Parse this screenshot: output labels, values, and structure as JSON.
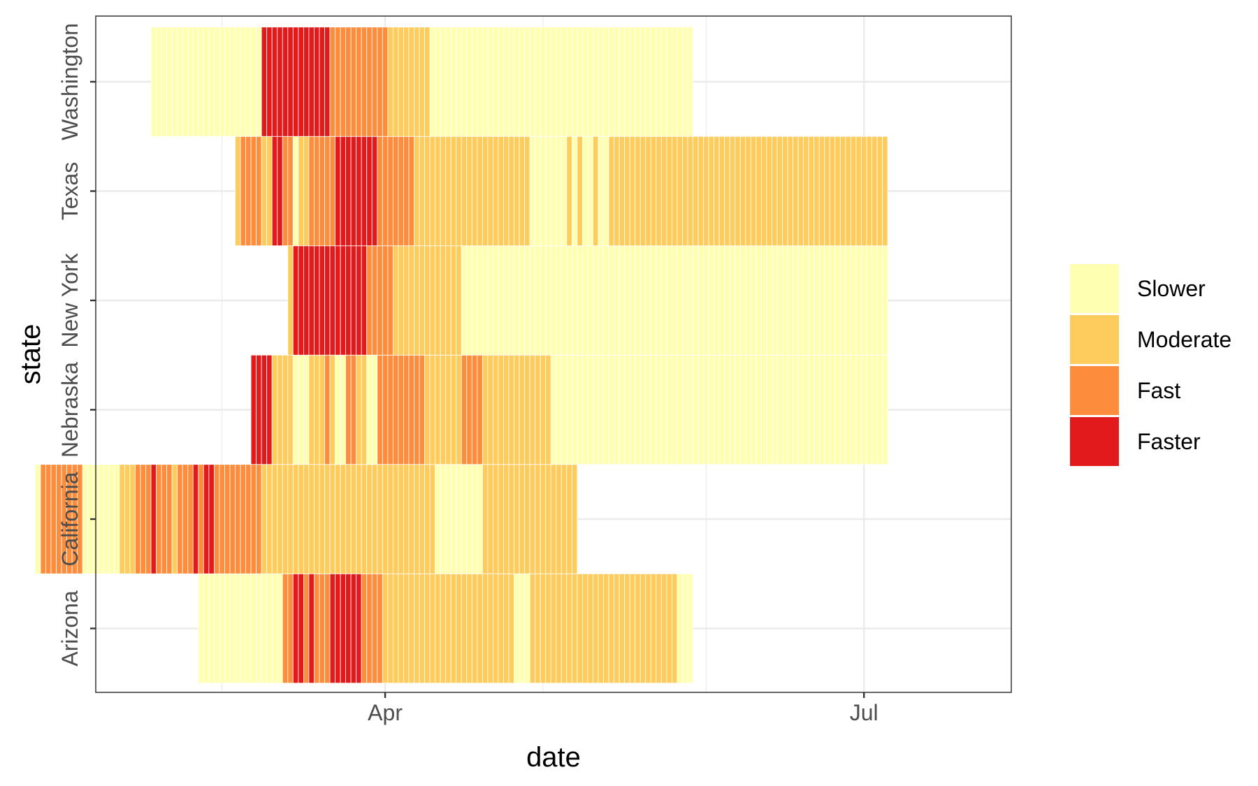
{
  "chart_data": {
    "type": "heatmap",
    "title": "",
    "xlabel": "date",
    "ylabel": "state",
    "x_ticks": [
      "Apr",
      "Jul"
    ],
    "x_range": [
      "2020-02-06",
      "2020-07-29"
    ],
    "grid": true,
    "legend_position": "right",
    "categories": [
      "Arizona",
      "California",
      "Nebraska",
      "New York",
      "Texas",
      "Washington"
    ],
    "levels": [
      "Slower",
      "Moderate",
      "Fast",
      "Faster"
    ],
    "colors": {
      "Slower": "#ffffb2",
      "Moderate": "#fecc5c",
      "Fast": "#fd8d3c",
      "Faster": "#e31a1c"
    },
    "series": [
      {
        "name": "Arizona",
        "segments": [
          {
            "start": "2020-02-26",
            "end": "2020-03-12",
            "level": "Slower"
          },
          {
            "start": "2020-03-13",
            "end": "2020-03-14",
            "level": "Fast"
          },
          {
            "start": "2020-03-15",
            "end": "2020-03-16",
            "level": "Faster"
          },
          {
            "start": "2020-03-17",
            "end": "2020-03-17",
            "level": "Fast"
          },
          {
            "start": "2020-03-18",
            "end": "2020-03-18",
            "level": "Faster"
          },
          {
            "start": "2020-03-19",
            "end": "2020-03-21",
            "level": "Fast"
          },
          {
            "start": "2020-03-22",
            "end": "2020-03-27",
            "level": "Faster"
          },
          {
            "start": "2020-03-28",
            "end": "2020-03-31",
            "level": "Fast"
          },
          {
            "start": "2020-04-01",
            "end": "2020-04-25",
            "level": "Moderate"
          },
          {
            "start": "2020-04-26",
            "end": "2020-04-28",
            "level": "Slower"
          },
          {
            "start": "2020-04-29",
            "end": "2020-05-26",
            "level": "Moderate"
          },
          {
            "start": "2020-05-27",
            "end": "2020-05-29",
            "level": "Slower"
          }
        ]
      },
      {
        "name": "California",
        "segments": [
          {
            "start": "2020-01-26",
            "end": "2020-01-26",
            "level": "Slower"
          },
          {
            "start": "2020-01-27",
            "end": "2020-02-03",
            "level": "Fast"
          },
          {
            "start": "2020-02-04",
            "end": "2020-02-10",
            "level": "Slower"
          },
          {
            "start": "2020-02-11",
            "end": "2020-02-13",
            "level": "Moderate"
          },
          {
            "start": "2020-02-14",
            "end": "2020-02-16",
            "level": "Fast"
          },
          {
            "start": "2020-02-17",
            "end": "2020-02-17",
            "level": "Faster"
          },
          {
            "start": "2020-02-18",
            "end": "2020-02-20",
            "level": "Fast"
          },
          {
            "start": "2020-02-21",
            "end": "2020-02-21",
            "level": "Moderate"
          },
          {
            "start": "2020-02-22",
            "end": "2020-02-24",
            "level": "Fast"
          },
          {
            "start": "2020-02-25",
            "end": "2020-02-25",
            "level": "Faster"
          },
          {
            "start": "2020-02-26",
            "end": "2020-02-26",
            "level": "Fast"
          },
          {
            "start": "2020-02-27",
            "end": "2020-02-28",
            "level": "Faster"
          },
          {
            "start": "2020-02-29",
            "end": "2020-03-08",
            "level": "Fast"
          },
          {
            "start": "2020-03-09",
            "end": "2020-04-10",
            "level": "Moderate"
          },
          {
            "start": "2020-04-11",
            "end": "2020-04-19",
            "level": "Slower"
          },
          {
            "start": "2020-04-20",
            "end": "2020-05-07",
            "level": "Moderate"
          }
        ]
      },
      {
        "name": "Nebraska",
        "segments": [
          {
            "start": "2020-03-07",
            "end": "2020-03-10",
            "level": "Faster"
          },
          {
            "start": "2020-03-11",
            "end": "2020-03-14",
            "level": "Moderate"
          },
          {
            "start": "2020-03-15",
            "end": "2020-03-17",
            "level": "Slower"
          },
          {
            "start": "2020-03-18",
            "end": "2020-03-20",
            "level": "Moderate"
          },
          {
            "start": "2020-03-21",
            "end": "2020-03-21",
            "level": "Fast"
          },
          {
            "start": "2020-03-22",
            "end": "2020-03-22",
            "level": "Moderate"
          },
          {
            "start": "2020-03-23",
            "end": "2020-03-24",
            "level": "Slower"
          },
          {
            "start": "2020-03-25",
            "end": "2020-03-26",
            "level": "Fast"
          },
          {
            "start": "2020-03-27",
            "end": "2020-03-28",
            "level": "Moderate"
          },
          {
            "start": "2020-03-29",
            "end": "2020-03-30",
            "level": "Slower"
          },
          {
            "start": "2020-03-31",
            "end": "2020-04-08",
            "level": "Fast"
          },
          {
            "start": "2020-04-09",
            "end": "2020-04-15",
            "level": "Moderate"
          },
          {
            "start": "2020-04-16",
            "end": "2020-04-19",
            "level": "Fast"
          },
          {
            "start": "2020-04-20",
            "end": "2020-05-02",
            "level": "Moderate"
          },
          {
            "start": "2020-05-03",
            "end": "2020-07-05",
            "level": "Slower"
          }
        ]
      },
      {
        "name": "New York",
        "segments": [
          {
            "start": "2020-03-14",
            "end": "2020-03-14",
            "level": "Moderate"
          },
          {
            "start": "2020-03-15",
            "end": "2020-03-28",
            "level": "Faster"
          },
          {
            "start": "2020-03-29",
            "end": "2020-04-02",
            "level": "Fast"
          },
          {
            "start": "2020-04-03",
            "end": "2020-04-15",
            "level": "Moderate"
          },
          {
            "start": "2020-04-16",
            "end": "2020-07-05",
            "level": "Slower"
          }
        ]
      },
      {
        "name": "Texas",
        "segments": [
          {
            "start": "2020-03-04",
            "end": "2020-03-04",
            "level": "Moderate"
          },
          {
            "start": "2020-03-05",
            "end": "2020-03-08",
            "level": "Fast"
          },
          {
            "start": "2020-03-09",
            "end": "2020-03-10",
            "level": "Moderate"
          },
          {
            "start": "2020-03-11",
            "end": "2020-03-12",
            "level": "Faster"
          },
          {
            "start": "2020-03-13",
            "end": "2020-03-14",
            "level": "Fast"
          },
          {
            "start": "2020-03-15",
            "end": "2020-03-15",
            "level": "Slower"
          },
          {
            "start": "2020-03-16",
            "end": "2020-03-17",
            "level": "Moderate"
          },
          {
            "start": "2020-03-18",
            "end": "2020-03-22",
            "level": "Fast"
          },
          {
            "start": "2020-03-23",
            "end": "2020-03-30",
            "level": "Faster"
          },
          {
            "start": "2020-03-31",
            "end": "2020-04-06",
            "level": "Fast"
          },
          {
            "start": "2020-04-07",
            "end": "2020-04-28",
            "level": "Moderate"
          },
          {
            "start": "2020-04-29",
            "end": "2020-05-05",
            "level": "Slower"
          },
          {
            "start": "2020-05-06",
            "end": "2020-05-06",
            "level": "Moderate"
          },
          {
            "start": "2020-05-07",
            "end": "2020-05-07",
            "level": "Slower"
          },
          {
            "start": "2020-05-08",
            "end": "2020-05-08",
            "level": "Moderate"
          },
          {
            "start": "2020-05-09",
            "end": "2020-05-10",
            "level": "Slower"
          },
          {
            "start": "2020-05-11",
            "end": "2020-05-11",
            "level": "Moderate"
          },
          {
            "start": "2020-05-12",
            "end": "2020-05-13",
            "level": "Slower"
          },
          {
            "start": "2020-05-14",
            "end": "2020-07-05",
            "level": "Moderate"
          }
        ]
      },
      {
        "name": "Washington",
        "segments": [
          {
            "start": "2020-02-17",
            "end": "2020-03-08",
            "level": "Slower"
          },
          {
            "start": "2020-03-09",
            "end": "2020-03-21",
            "level": "Faster"
          },
          {
            "start": "2020-03-22",
            "end": "2020-04-01",
            "level": "Fast"
          },
          {
            "start": "2020-04-02",
            "end": "2020-04-09",
            "level": "Moderate"
          },
          {
            "start": "2020-04-10",
            "end": "2020-05-29",
            "level": "Slower"
          }
        ]
      }
    ]
  }
}
